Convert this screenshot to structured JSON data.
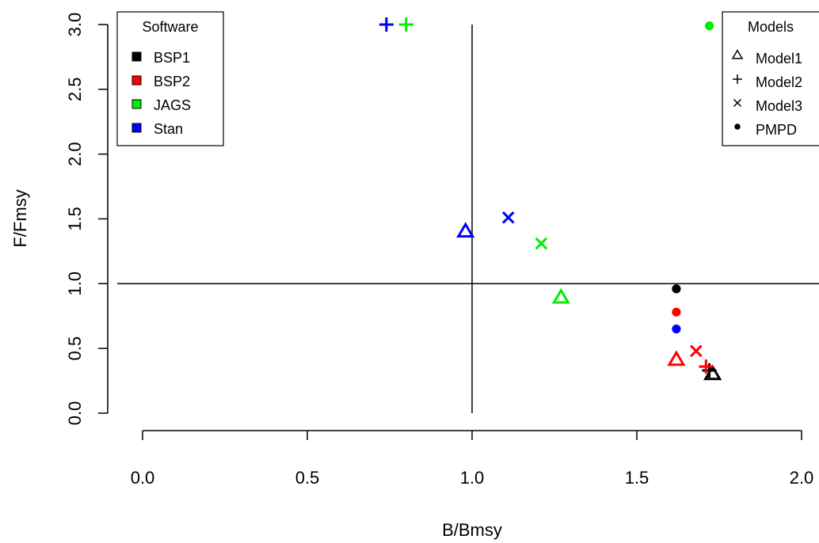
{
  "chart_data": {
    "type": "scatter",
    "xlabel": "B/Bmsy",
    "ylabel": "F/Fmsy",
    "xlim": [
      0,
      2
    ],
    "ylim": [
      0,
      3
    ],
    "x_ticks": [
      "0.0",
      "0.5",
      "1.0",
      "1.5",
      "2.0"
    ],
    "y_ticks": [
      "0.0",
      "0.5",
      "1.0",
      "1.5",
      "2.0",
      "2.5",
      "3.0"
    ],
    "reference_lines": {
      "x": 1.0,
      "y": 1.0
    },
    "legend_software": {
      "title": "Software",
      "placement": "top-left",
      "entries": [
        {
          "label": "BSP1",
          "color": "#000000"
        },
        {
          "label": "BSP2",
          "color": "#ff0000"
        },
        {
          "label": "JAGS",
          "color": "#00ee00"
        },
        {
          "label": "Stan",
          "color": "#0000ff"
        }
      ]
    },
    "legend_models": {
      "title": "Models",
      "placement": "top-right",
      "entries": [
        {
          "label": "Model1",
          "marker": "triangle"
        },
        {
          "label": "Model2",
          "marker": "plus"
        },
        {
          "label": "Model3",
          "marker": "cross"
        },
        {
          "label": "PMPD",
          "marker": "dot"
        }
      ]
    },
    "points": [
      {
        "software": "BSP1",
        "model": "Model1",
        "x": 1.73,
        "y": 0.3
      },
      {
        "software": "BSP1",
        "model": "Model2",
        "x": 1.72,
        "y": 0.33
      },
      {
        "software": "BSP1",
        "model": "PMPD",
        "x": 1.62,
        "y": 0.96
      },
      {
        "software": "BSP2",
        "model": "Model1",
        "x": 1.62,
        "y": 0.41
      },
      {
        "software": "BSP2",
        "model": "Model2",
        "x": 1.71,
        "y": 0.36
      },
      {
        "software": "BSP2",
        "model": "Model3",
        "x": 1.68,
        "y": 0.48
      },
      {
        "software": "BSP2",
        "model": "PMPD",
        "x": 1.62,
        "y": 0.78
      },
      {
        "software": "JAGS",
        "model": "Model1",
        "x": 1.27,
        "y": 0.89
      },
      {
        "software": "JAGS",
        "model": "Model2",
        "x": 0.8,
        "y": 3.0
      },
      {
        "software": "JAGS",
        "model": "Model3",
        "x": 1.21,
        "y": 1.31
      },
      {
        "software": "JAGS",
        "model": "PMPD",
        "x": 1.72,
        "y": 2.99
      },
      {
        "software": "Stan",
        "model": "Model1",
        "x": 0.98,
        "y": 1.4
      },
      {
        "software": "Stan",
        "model": "Model2",
        "x": 0.74,
        "y": 3.0
      },
      {
        "software": "Stan",
        "model": "Model3",
        "x": 1.11,
        "y": 1.51
      },
      {
        "software": "Stan",
        "model": "PMPD",
        "x": 1.62,
        "y": 0.65
      }
    ]
  }
}
